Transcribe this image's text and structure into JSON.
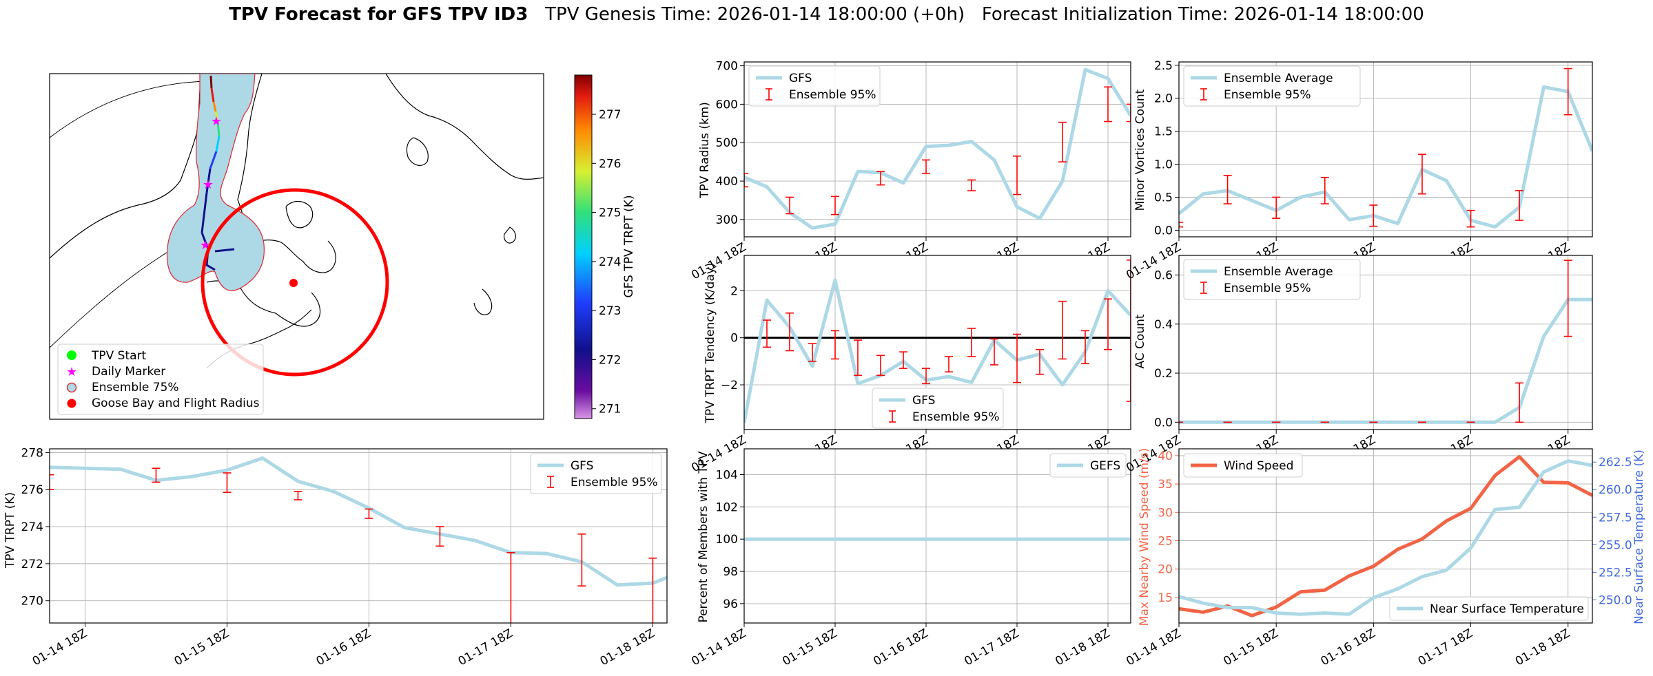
{
  "header": {
    "title_bold": "TPV Forecast for GFS TPV ID3",
    "genesis": "TPV Genesis Time: 2026-01-14 18:00:00 (+0h)",
    "init": "Forecast Initialization Time: 2026-01-14 18:00:00"
  },
  "x_ticks": [
    "01-14 18Z",
    "01-15 18Z",
    "01-16 18Z",
    "01-17 18Z",
    "01-18 18Z"
  ],
  "colors": {
    "gfs_line": "#add8e6",
    "errorbar": "#ff0000",
    "wind": "#f26446",
    "temp_axis": "#4169e1",
    "zero_line": "#000000",
    "grid": "#b0b0b0",
    "flight_radius": "#ff0000",
    "ensemble_fill": "#add8e6",
    "ensemble_edge": "#e0303a",
    "tpv_start": "#00ff00",
    "daily_marker": "#ff00ff"
  },
  "map": {
    "colorbar_label": "GFS TPV TRPT (K)",
    "colorbar_ticks": [
      271,
      272,
      273,
      274,
      275,
      276,
      277
    ],
    "colorbar_range": [
      270.8,
      277.8
    ],
    "legend": [
      {
        "label": "TPV Start",
        "icon": "green-dot-icon"
      },
      {
        "label": "Daily Marker",
        "icon": "magenta-star-icon"
      },
      {
        "label": "Ensemble 75%",
        "icon": "lightblue-circle-icon"
      },
      {
        "label": "Goose Bay and Flight Radius",
        "icon": "red-dot-icon"
      }
    ]
  },
  "chart_data": [
    {
      "id": "trpt",
      "type": "line",
      "ylabel": "TPV TRPT (K)",
      "ylim": [
        268.8,
        278.2
      ],
      "yticks": [
        270,
        272,
        274,
        276,
        278
      ],
      "ytick_labels": [
        "270",
        "272",
        "274",
        "276",
        "278"
      ],
      "legend_position": "top-right",
      "legend": [
        "GFS",
        "Ensemble 95%"
      ],
      "series": [
        {
          "name": "GFS",
          "x": [
            -0.25,
            0,
            0.25,
            0.5,
            0.75,
            1,
            1.25,
            1.5,
            1.75,
            2,
            2.25,
            2.5,
            2.75,
            3,
            3.25,
            3.5,
            3.75,
            4,
            4.25
          ],
          "values": [
            277.2,
            277.15,
            277.1,
            276.5,
            276.7,
            277.05,
            277.7,
            276.45,
            275.9,
            275.0,
            273.95,
            273.6,
            273.25,
            272.6,
            272.55,
            272.1,
            270.85,
            270.95,
            271.7
          ]
        }
      ],
      "errorbars": {
        "name": "Ensemble 95%",
        "x": [
          -0.25,
          0.5,
          1,
          1.5,
          2,
          2.5,
          3,
          3.5,
          4
        ],
        "low": [
          276.0,
          276.4,
          275.85,
          275.45,
          274.45,
          272.95,
          268.7,
          270.8,
          268.6
        ],
        "high": [
          276.8,
          277.15,
          276.9,
          275.9,
          274.95,
          274.0,
          272.6,
          273.6,
          272.3
        ]
      }
    },
    {
      "id": "radius",
      "type": "line",
      "ylabel": "TPV Radius (km)",
      "ylim": [
        255,
        710
      ],
      "yticks": [
        300,
        400,
        500,
        600,
        700
      ],
      "ytick_labels": [
        "300",
        "400",
        "500",
        "600",
        "700"
      ],
      "legend_position": "top-left",
      "legend": [
        "GFS",
        "Ensemble 95%"
      ],
      "series": [
        {
          "name": "GFS",
          "x": [
            0,
            0.25,
            0.5,
            0.75,
            1,
            1.25,
            1.5,
            1.75,
            2,
            2.25,
            2.5,
            2.75,
            3,
            3.25,
            3.5,
            3.75,
            4,
            4.25
          ],
          "values": [
            410,
            385,
            318,
            278,
            288,
            425,
            422,
            395,
            490,
            493,
            503,
            455,
            333,
            303,
            400,
            690,
            667,
            570
          ]
        }
      ],
      "errorbars": {
        "name": "Ensemble 95%",
        "x": [
          0,
          0.5,
          1,
          1.5,
          2,
          2.5,
          3,
          3.5,
          4,
          4.25
        ],
        "low": [
          385,
          315,
          313,
          390,
          420,
          375,
          365,
          450,
          555,
          555
        ],
        "high": [
          420,
          358,
          360,
          425,
          455,
          403,
          465,
          553,
          645,
          600
        ]
      }
    },
    {
      "id": "tendency",
      "type": "line",
      "ylabel": "TPV TRPT Tendency (K/day)",
      "ylim": [
        -3.9,
        3.5
      ],
      "yticks": [
        -2,
        0,
        2
      ],
      "ytick_labels": [
        "−2",
        "0",
        "2"
      ],
      "zero_line": true,
      "legend_position": "lower-center",
      "legend": [
        "GFS",
        "Ensemble 95%"
      ],
      "series": [
        {
          "name": "GFS",
          "x": [
            0,
            0.25,
            0.5,
            0.75,
            1,
            1.25,
            1.5,
            1.75,
            2,
            2.25,
            2.5,
            2.75,
            3,
            3.25,
            3.5,
            3.75,
            4,
            4.25
          ],
          "values": [
            -3.6,
            1.6,
            0.45,
            -1.2,
            2.45,
            -1.95,
            -1.6,
            -1.0,
            -1.8,
            -1.65,
            -1.9,
            -0.1,
            -0.95,
            -0.7,
            -2.0,
            -0.6,
            2.0,
            0.95
          ]
        }
      ],
      "errorbars": {
        "name": "Ensemble 95%",
        "x": [
          -0.25,
          0.25,
          0.5,
          0.75,
          1,
          1.25,
          1.5,
          1.75,
          2,
          2.25,
          2.5,
          2.75,
          3,
          3.25,
          3.5,
          3.75,
          4,
          4.25
        ],
        "low": [
          -1.0,
          -0.4,
          -0.55,
          -1.0,
          -0.9,
          -1.6,
          -1.6,
          -1.3,
          -1.95,
          -1.45,
          -0.8,
          -1.15,
          -1.9,
          -1.55,
          -0.9,
          -1.1,
          -0.5,
          -2.7
        ],
        "high": [
          0.9,
          0.75,
          1.05,
          -0.25,
          0.3,
          -0.1,
          -0.75,
          -0.6,
          -1.3,
          -0.8,
          0.4,
          -0.05,
          0.15,
          -0.5,
          1.55,
          0.3,
          1.65,
          3.3
        ]
      }
    },
    {
      "id": "members",
      "type": "line",
      "ylabel": "Percent of Members with TPV",
      "ylim": [
        94.8,
        105.6
      ],
      "yticks": [
        96,
        98,
        100,
        102,
        104
      ],
      "ytick_labels": [
        "96",
        "98",
        "100",
        "102",
        "104"
      ],
      "legend_position": "top-right",
      "legend": [
        "GEFS"
      ],
      "series": [
        {
          "name": "GEFS",
          "x": [
            0,
            4.25
          ],
          "values": [
            100,
            100
          ]
        }
      ]
    },
    {
      "id": "minor",
      "type": "line",
      "ylabel": "Minor Vortices Count",
      "ylim": [
        -0.1,
        2.55
      ],
      "yticks": [
        0.0,
        0.5,
        1.0,
        1.5,
        2.0,
        2.5
      ],
      "ytick_labels": [
        "0.0",
        "0.5",
        "1.0",
        "1.5",
        "2.0",
        "2.5"
      ],
      "legend_position": "top-left",
      "legend": [
        "Ensemble Average",
        "Ensemble 95%"
      ],
      "series": [
        {
          "name": "Ensemble Average",
          "x": [
            0,
            0.25,
            0.5,
            0.75,
            1,
            1.25,
            1.5,
            1.75,
            2,
            2.25,
            2.5,
            2.75,
            3,
            3.25,
            3.5,
            3.75,
            4,
            4.25
          ],
          "values": [
            0.25,
            0.55,
            0.6,
            0.45,
            0.3,
            0.5,
            0.58,
            0.16,
            0.22,
            0.1,
            0.92,
            0.75,
            0.15,
            0.05,
            0.35,
            2.17,
            2.1,
            1.2
          ]
        }
      ],
      "errorbars": {
        "name": "Ensemble 95%",
        "x": [
          0,
          0.5,
          1,
          1.5,
          2,
          2.5,
          3,
          3.5,
          4
        ],
        "low": [
          0.05,
          0.4,
          0.18,
          0.4,
          0.06,
          0.55,
          0.05,
          0.15,
          1.75
        ],
        "high": [
          0.12,
          0.83,
          0.5,
          0.8,
          0.38,
          1.15,
          0.3,
          0.6,
          2.45
        ]
      }
    },
    {
      "id": "ac",
      "type": "line",
      "ylabel": "AC Count",
      "ylim": [
        -0.03,
        0.68
      ],
      "yticks": [
        0.0,
        0.2,
        0.4,
        0.6
      ],
      "ytick_labels": [
        "0.0",
        "0.2",
        "0.4",
        "0.6"
      ],
      "legend_position": "top-left",
      "legend": [
        "Ensemble Average",
        "Ensemble 95%"
      ],
      "series": [
        {
          "name": "Ensemble Average",
          "x": [
            0,
            0.25,
            0.5,
            0.75,
            1,
            1.25,
            1.5,
            1.75,
            2,
            2.25,
            2.5,
            2.75,
            3,
            3.25,
            3.5,
            3.75,
            4,
            4.25
          ],
          "values": [
            0,
            0,
            0,
            0,
            0,
            0,
            0,
            0,
            0,
            0,
            0,
            0,
            0,
            0,
            0.06,
            0.35,
            0.5,
            0.5
          ]
        }
      ],
      "errorbars": {
        "name": "Ensemble 95%",
        "x": [
          0,
          0.5,
          1,
          1.5,
          2,
          2.5,
          3,
          3.5,
          4
        ],
        "low": [
          0,
          0,
          0,
          0,
          0,
          0,
          0,
          0,
          0.35
        ],
        "high": [
          0,
          0,
          0,
          0,
          0,
          0,
          0,
          0.16,
          0.66
        ]
      }
    },
    {
      "id": "wind",
      "type": "line",
      "ylabel": "Max Nearby Wind Speed (m/s)",
      "ylim": [
        10.5,
        41.2
      ],
      "yticks": [
        15,
        20,
        25,
        30,
        35,
        40
      ],
      "ytick_labels": [
        "15",
        "20",
        "25",
        "30",
        "35",
        "40"
      ],
      "y2label": "Near Surface Temperature (K)",
      "y2lim": [
        247.9,
        263.7
      ],
      "y2ticks": [
        250.0,
        252.5,
        255.0,
        257.5,
        260.0,
        262.5
      ],
      "y2tick_labels": [
        "250.0",
        "252.5",
        "255.0",
        "257.5",
        "260.0",
        "262.5"
      ],
      "legend_position": "top-left / bottom-right",
      "legend": [
        "Wind Speed",
        "Near Surface Temperature"
      ],
      "series": [
        {
          "name": "Wind Speed",
          "axis": "left",
          "x": [
            0,
            0.25,
            0.5,
            0.75,
            1,
            1.25,
            1.5,
            1.75,
            2,
            2.25,
            2.5,
            2.75,
            3,
            3.25,
            3.5,
            3.75,
            4,
            4.25
          ],
          "values": [
            13.0,
            12.4,
            13.5,
            11.8,
            13.3,
            16.0,
            16.3,
            18.8,
            20.5,
            23.5,
            25.3,
            28.5,
            30.7,
            36.5,
            39.8,
            35.3,
            35.2,
            33.0
          ]
        },
        {
          "name": "Near Surface Temperature",
          "axis": "right",
          "x": [
            0,
            0.25,
            0.5,
            0.75,
            1,
            1.25,
            1.5,
            1.75,
            2,
            2.25,
            2.5,
            2.75,
            3,
            3.25,
            3.5,
            3.75,
            4,
            4.25
          ],
          "values": [
            250.3,
            249.7,
            249.3,
            249.3,
            248.8,
            248.7,
            248.8,
            248.7,
            250.2,
            251.0,
            252.1,
            252.7,
            254.7,
            258.2,
            258.4,
            261.6,
            262.6,
            262.2
          ]
        }
      ]
    }
  ]
}
